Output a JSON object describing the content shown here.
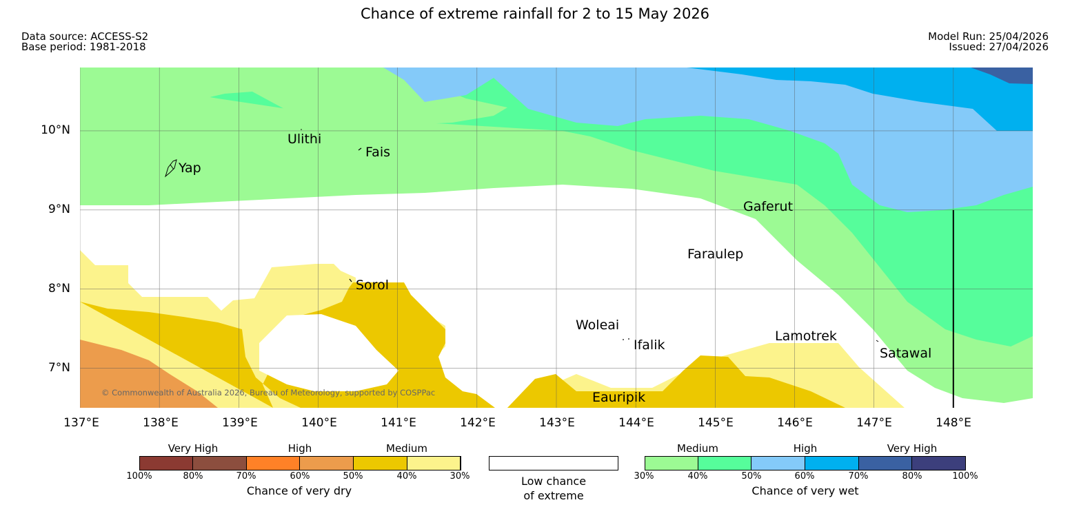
{
  "title": "Chance of extreme rainfall for 2 to 15 May 2026",
  "meta": {
    "data_source": "Data source: ACCESS-S2",
    "base_period": "Base period: 1981-2018",
    "model_run": "Model Run: 25/04/2026",
    "issued": "Issued: 27/04/2026"
  },
  "map": {
    "lat_labels": [
      "10°N",
      "9°N",
      "8°N",
      "7°N"
    ],
    "lon_labels": [
      "137°E",
      "138°E",
      "139°E",
      "140°E",
      "141°E",
      "142°E",
      "143°E",
      "144°E",
      "145°E",
      "146°E",
      "147°E",
      "148°E"
    ],
    "places": [
      "Ulithi",
      "Fais",
      "Yap",
      "Sorol",
      "Gaferut",
      "Faraulep",
      "Woleai",
      "Ifalik",
      "Lamotrek",
      "Satawal",
      "Eauripik"
    ],
    "copyright": "© Commonwealth of Australia 2026, Bureau of Meteorology, supported by COSPPac"
  },
  "colors": {
    "dry_vh_dark": "#8b3a32",
    "dry_vh_light": "#8c4e3e",
    "dry_high_dark": "#ff8127",
    "dry_high_light": "#ec9c4c",
    "dry_med_dark": "#ecc800",
    "dry_med_light": "#fcf38c",
    "wet_med_light": "#9cfa94",
    "wet_med_dark": "#56fd9b",
    "wet_high_light": "#84caf9",
    "wet_high_dark": "#00b0ef",
    "wet_vh_light": "#3a61a2",
    "wet_vh_dark": "#3c3f7c"
  },
  "legend": {
    "dry": {
      "categories": [
        "Very High",
        "High",
        "Medium"
      ],
      "ticks": [
        "100%",
        "80%",
        "70%",
        "60%",
        "50%",
        "40%",
        "30%"
      ],
      "title": "Chance of very dry"
    },
    "low": {
      "title_line1": "Low chance",
      "title_line2": "of extreme"
    },
    "wet": {
      "categories": [
        "Medium",
        "High",
        "Very High"
      ],
      "ticks": [
        "30%",
        "40%",
        "50%",
        "60%",
        "70%",
        "80%",
        "100%"
      ],
      "title": "Chance of very wet"
    }
  }
}
